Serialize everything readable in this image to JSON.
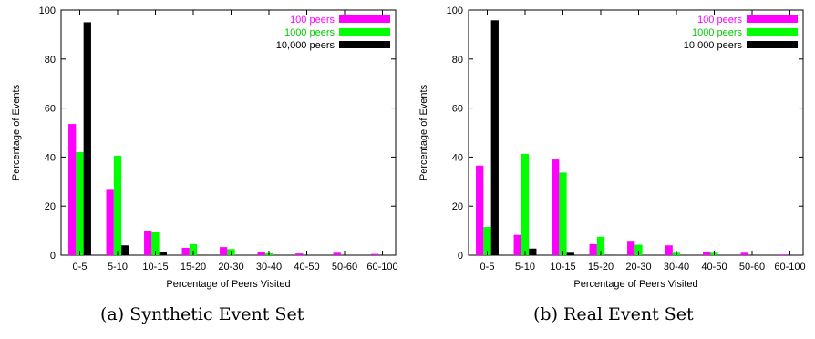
{
  "colors": {
    "series": [
      "#ff00ff",
      "#00ff00",
      "#000000"
    ],
    "legend_text": [
      "#ff00ff",
      "#00cc00",
      "#000000"
    ]
  },
  "captions": {
    "a": "(a) Synthetic Event Set",
    "b": "(b) Real Event Set"
  },
  "chart_data": [
    {
      "type": "bar",
      "title": "",
      "xlabel": "Percentage of Peers Visited",
      "ylabel": "Percentage of Events",
      "ylim": [
        0,
        100
      ],
      "yticks": [
        0,
        20,
        40,
        60,
        80,
        100
      ],
      "grid": false,
      "legend_position": "top-right",
      "categories": [
        "0-5",
        "5-10",
        "10-15",
        "15-20",
        "20-30",
        "30-40",
        "40-50",
        "50-60",
        "60-100"
      ],
      "series": [
        {
          "name": "100 peers",
          "values": [
            53.5,
            27,
            9.8,
            3,
            3.3,
            1.5,
            0.7,
            1,
            0.5
          ]
        },
        {
          "name": "1000 peers",
          "values": [
            42,
            40.5,
            9.3,
            4.5,
            2.5,
            0.8,
            0,
            0,
            0
          ]
        },
        {
          "name": "10,000 peers",
          "values": [
            95,
            4,
            1.2,
            0.2,
            0,
            0,
            0,
            0,
            0
          ]
        }
      ]
    },
    {
      "type": "bar",
      "title": "",
      "xlabel": "Percentage of Peers Visited",
      "ylabel": "Percentage of Events",
      "ylim": [
        0,
        100
      ],
      "yticks": [
        0,
        20,
        40,
        60,
        80,
        100
      ],
      "grid": false,
      "legend_position": "top-right",
      "categories": [
        "0-5",
        "5-10",
        "10-15",
        "15-20",
        "20-30",
        "30-40",
        "40-50",
        "50-60",
        "60-100"
      ],
      "series": [
        {
          "name": "100 peers",
          "values": [
            36.5,
            8.3,
            39,
            4.5,
            5.5,
            4,
            1.2,
            1,
            0.3
          ]
        },
        {
          "name": "1000 peers",
          "values": [
            11.5,
            41.3,
            33.7,
            7.5,
            4.3,
            1,
            1,
            0,
            0
          ]
        },
        {
          "name": "10,000 peers",
          "values": [
            95.8,
            2.7,
            1,
            0.2,
            0,
            0,
            0,
            0,
            0
          ]
        }
      ]
    }
  ]
}
